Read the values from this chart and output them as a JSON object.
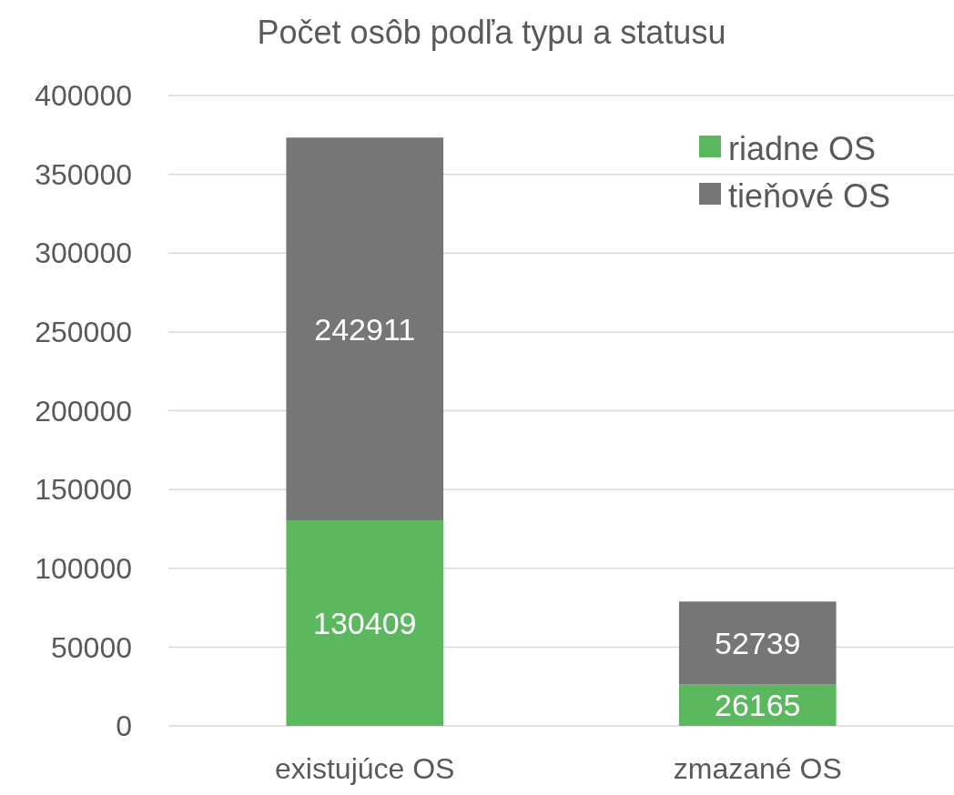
{
  "chart_data": {
    "type": "bar",
    "title": "Počet osôb podľa typu a statusu",
    "categories": [
      "existujúce OS",
      "zmazané OS"
    ],
    "stacked": true,
    "series": [
      {
        "name": "riadne OS",
        "color": "#5cb85f",
        "values": [
          130409,
          26165
        ]
      },
      {
        "name": "tieňové OS",
        "color": "#767676",
        "values": [
          242911,
          52739
        ]
      }
    ],
    "ylim": [
      0,
      400000
    ],
    "yticks": [
      0,
      50000,
      100000,
      150000,
      200000,
      250000,
      300000,
      350000,
      400000
    ],
    "grid": "y",
    "legend": "top right",
    "data_labels": true
  }
}
